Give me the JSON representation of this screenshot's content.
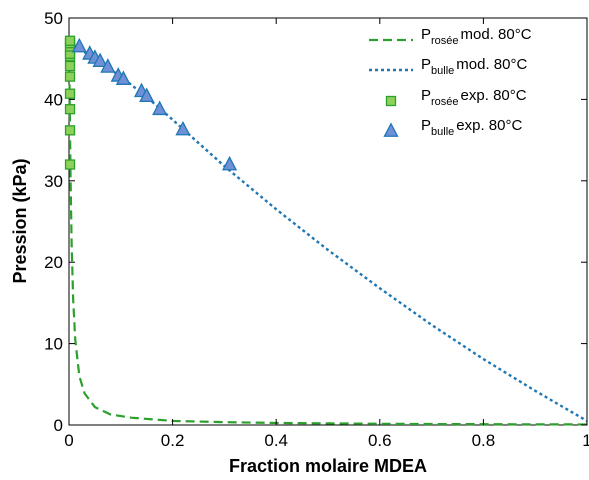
{
  "chart_data": {
    "type": "line",
    "xlabel": "Fraction molaire MDEA",
    "ylabel": "Pression (kPa)",
    "xlim": [
      0,
      1
    ],
    "ylim": [
      0,
      50
    ],
    "x_ticks": [
      "0",
      "0.2",
      "0.4",
      "0.6",
      "0.8",
      "1"
    ],
    "y_ticks": [
      "0",
      "10",
      "20",
      "30",
      "40",
      "50"
    ],
    "grid": false,
    "legend_position": "top-right",
    "colors": {
      "dew": "#2ca02c",
      "dew_marker_fill": "#8ed15a",
      "bubble": "#1f77b4",
      "bubble_marker_fill": "#6f8fd6"
    },
    "series": [
      {
        "name_main": "P",
        "name_sub": "rosée",
        "name_rest": "mod. 80°C",
        "style": "dashed",
        "x": [
          0.0001,
          0.0005,
          0.001,
          0.002,
          0.003,
          0.005,
          0.008,
          0.012,
          0.02,
          0.03,
          0.05,
          0.08,
          0.12,
          0.2,
          0.3,
          0.4,
          0.5,
          0.6,
          0.7,
          0.8,
          0.9,
          1.0
        ],
        "y": [
          47.0,
          45.5,
          42.0,
          36.0,
          30.5,
          22.5,
          15.5,
          10.5,
          6.0,
          3.9,
          2.2,
          1.3,
          0.9,
          0.5,
          0.35,
          0.25,
          0.2,
          0.15,
          0.12,
          0.1,
          0.08,
          0.07
        ]
      },
      {
        "name_main": "P",
        "name_sub": "bulle",
        "name_rest": "mod. 80°C",
        "style": "dotted",
        "x": [
          0.0,
          0.05,
          0.1,
          0.15,
          0.2,
          0.3,
          0.4,
          0.5,
          0.6,
          0.7,
          0.8,
          0.9,
          1.0
        ],
        "y": [
          47.0,
          45.0,
          42.8,
          40.3,
          37.5,
          31.8,
          26.5,
          21.5,
          16.8,
          12.3,
          8.1,
          4.2,
          0.5
        ]
      },
      {
        "name_main": "P",
        "name_sub": "rosée",
        "name_rest": "exp. 80°C",
        "style": "square",
        "x": [
          0.002,
          0.002,
          0.002,
          0.002,
          0.002,
          0.002,
          0.002,
          0.002,
          0.002,
          0.002,
          0.002
        ],
        "y": [
          32.0,
          36.2,
          38.8,
          40.7,
          42.8,
          44.1,
          45.3,
          45.6,
          46.5,
          46.9,
          47.2
        ]
      },
      {
        "name_main": "P",
        "name_sub": "bulle",
        "name_rest": "exp. 80°C",
        "style": "triangle",
        "x": [
          0.02,
          0.04,
          0.05,
          0.06,
          0.075,
          0.095,
          0.105,
          0.14,
          0.15,
          0.175,
          0.22,
          0.31
        ],
        "y": [
          46.5,
          45.6,
          45.1,
          44.7,
          44.0,
          42.9,
          42.5,
          41.0,
          40.4,
          38.8,
          36.3,
          32.0
        ]
      }
    ]
  }
}
